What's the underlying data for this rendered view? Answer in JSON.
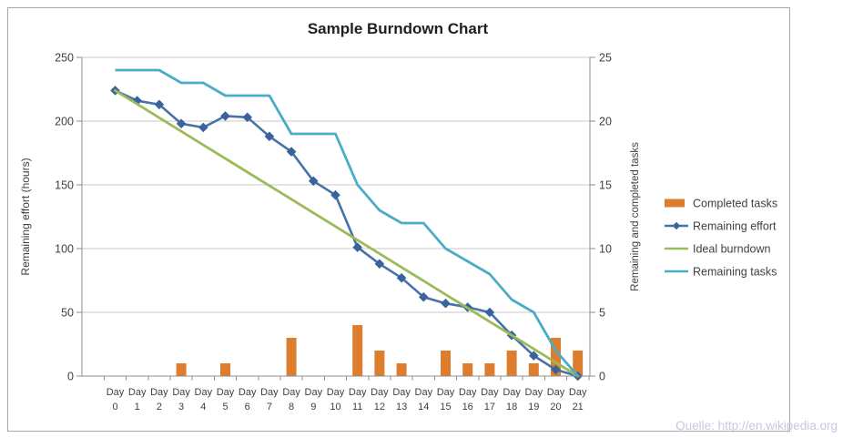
{
  "title": "Sample Burndown Chart",
  "watermark": "Quelle: http://en.wikipedia.org",
  "colors": {
    "title_text": "#1f1f1f",
    "tick_text": "#3f3f3f",
    "axis_title_text": "#3f3f3f",
    "legend_text": "#3f3f3f",
    "gridline": "#c8c8c8",
    "axis_line": "#8c8c8c",
    "image_border": "#a8a8a8",
    "watermark_text": "#c7c9de",
    "background": "#ffffff"
  },
  "chart_data": {
    "type": "bar",
    "subtype": "combo-bar-and-lines",
    "categories_word": "Day",
    "day_numbers": [
      0,
      1,
      2,
      3,
      4,
      5,
      6,
      7,
      8,
      9,
      10,
      11,
      12,
      13,
      14,
      15,
      16,
      17,
      18,
      19,
      20,
      21
    ],
    "categories": [
      "Day 0",
      "Day 1",
      "Day 2",
      "Day 3",
      "Day 4",
      "Day 5",
      "Day 6",
      "Day 7",
      "Day 8",
      "Day 9",
      "Day 10",
      "Day 11",
      "Day 12",
      "Day 13",
      "Day 14",
      "Day 15",
      "Day 16",
      "Day 17",
      "Day 18",
      "Day 19",
      "Day 20",
      "Day 21"
    ],
    "left_axis": {
      "label": "Remaining effort (hours)",
      "range": [
        0,
        250
      ],
      "ticks": [
        0,
        50,
        100,
        150,
        200,
        250
      ]
    },
    "right_axis": {
      "label": "Remaining and completed tasks",
      "range": [
        0,
        25
      ],
      "ticks": [
        0,
        5,
        10,
        15,
        20,
        25
      ]
    },
    "grid": true,
    "legend_position": "right",
    "series": [
      {
        "name": "Completed tasks",
        "type": "bar",
        "axis": "right",
        "color": "#dd7e2e",
        "values": [
          0,
          0,
          0,
          1,
          0,
          1,
          0,
          0,
          3,
          0,
          0,
          4,
          2,
          1,
          0,
          2,
          1,
          1,
          2,
          1,
          3,
          2
        ]
      },
      {
        "name": "Remaining effort",
        "type": "line-diamond",
        "axis": "left",
        "color": "#4572a7",
        "marker_color": "#3a639c",
        "values": [
          224,
          216,
          213,
          198,
          195,
          204,
          203,
          188,
          176,
          153,
          142,
          101,
          88,
          77,
          62,
          57,
          54,
          50,
          32,
          16,
          5,
          0
        ]
      },
      {
        "name": "Ideal burndown",
        "type": "line",
        "axis": "left",
        "color": "#9bbb59",
        "values": [
          224,
          213.33,
          202.67,
          192,
          181.33,
          170.67,
          160,
          149.33,
          138.67,
          128,
          117.33,
          106.67,
          96,
          85.33,
          74.67,
          64,
          53.33,
          42.67,
          32,
          21.33,
          10.67,
          0
        ]
      },
      {
        "name": "Remaining tasks",
        "type": "line",
        "axis": "right",
        "color": "#4bacc6",
        "values": [
          24,
          24,
          24,
          23,
          23,
          22,
          22,
          22,
          19,
          19,
          19,
          15,
          13,
          12,
          12,
          10,
          9,
          8,
          6,
          5,
          2,
          0
        ]
      }
    ]
  }
}
